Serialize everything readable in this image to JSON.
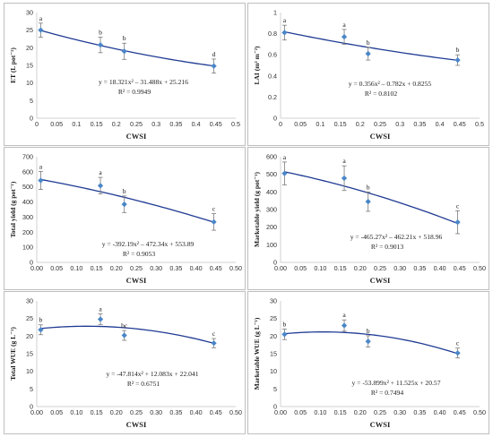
{
  "colors": {
    "curve": "#1f3a93",
    "point": "#4a86c8",
    "errorbar": "#7a7a7a",
    "border": "#bfbfbf"
  },
  "chart_data": [
    {
      "type": "scatter",
      "xlabel": "CWSI",
      "ylabel": "ET (L pot⁻¹)",
      "xlim": [
        0,
        0.5
      ],
      "ylim": [
        0,
        30
      ],
      "xticks": [
        "0",
        "0.05",
        "0.1",
        "0.15",
        "0.2",
        "0.25",
        "0.3",
        "0.35",
        "0.4",
        "0.45",
        "0.5"
      ],
      "yticks": [
        "0",
        "5",
        "10",
        "15",
        "20",
        "25",
        "30"
      ],
      "points": [
        {
          "x": 0.01,
          "y": 25.0,
          "err": 2.0,
          "label": "a"
        },
        {
          "x": 0.16,
          "y": 20.8,
          "err": 2.2,
          "label": "b"
        },
        {
          "x": 0.22,
          "y": 19.0,
          "err": 2.3,
          "label": "b"
        },
        {
          "x": 0.445,
          "y": 14.8,
          "err": 2.0,
          "label": "d"
        }
      ],
      "fit": [
        18.321,
        -31.488,
        25.216
      ],
      "equation": "y = 18.321x² – 31.488x + 25.216",
      "r2": "R² = 0.9949"
    },
    {
      "type": "scatter",
      "xlabel": "CWSI",
      "ylabel": "LAI (m² m⁻²)",
      "xlim": [
        0,
        0.5
      ],
      "ylim": [
        0,
        1
      ],
      "xticks": [
        "0",
        "0.05",
        "0.1",
        "0.15",
        "0.2",
        "0.25",
        "0.3",
        "0.35",
        "0.4",
        "0.45",
        "0.5"
      ],
      "yticks": [
        "0",
        "0.2",
        "0.4",
        "0.6",
        "0.8",
        "1"
      ],
      "points": [
        {
          "x": 0.01,
          "y": 0.81,
          "err": 0.07,
          "label": "a"
        },
        {
          "x": 0.16,
          "y": 0.77,
          "err": 0.07,
          "label": "a"
        },
        {
          "x": 0.22,
          "y": 0.61,
          "err": 0.06,
          "label": "b"
        },
        {
          "x": 0.445,
          "y": 0.55,
          "err": 0.05,
          "label": "b"
        }
      ],
      "fit": [
        0.356,
        -0.782,
        0.8255
      ],
      "equation": "y = 0.356x² – 0.782x + 0.8255",
      "r2": "R² = 0.8102"
    },
    {
      "type": "scatter",
      "xlabel": "CWSI",
      "ylabel": "Total yield (g pot⁻¹)",
      "xlim": [
        0,
        0.5
      ],
      "ylim": [
        0,
        700
      ],
      "xticks": [
        "0.00",
        "0.05",
        "0.10",
        "0.15",
        "0.20",
        "0.25",
        "0.30",
        "0.35",
        "0.40",
        "0.45",
        "0.50"
      ],
      "yticks": [
        "0",
        "100",
        "200",
        "300",
        "400",
        "500",
        "600",
        "700"
      ],
      "points": [
        {
          "x": 0.01,
          "y": 543,
          "err": 60,
          "label": "a"
        },
        {
          "x": 0.16,
          "y": 508,
          "err": 55,
          "label": "a"
        },
        {
          "x": 0.22,
          "y": 385,
          "err": 55,
          "label": "b"
        },
        {
          "x": 0.445,
          "y": 268,
          "err": 55,
          "label": "c"
        }
      ],
      "fit": [
        -392.19,
        -472.34,
        553.89
      ],
      "equation": "y = -392.19x² – 472.34x + 553.89",
      "r2": "R² = 0.9053"
    },
    {
      "type": "scatter",
      "xlabel": "CWSI",
      "ylabel": "Marketable yield (g pot⁻¹)",
      "xlim": [
        0,
        0.5
      ],
      "ylim": [
        0,
        600
      ],
      "xticks": [
        "0.00",
        "0.05",
        "0.10",
        "0.15",
        "0.20",
        "0.25",
        "0.30",
        "0.35",
        "0.40",
        "0.45",
        "0.50"
      ],
      "yticks": [
        "0",
        "100",
        "200",
        "300",
        "400",
        "500",
        "600"
      ],
      "points": [
        {
          "x": 0.01,
          "y": 505,
          "err": 65,
          "label": "a"
        },
        {
          "x": 0.16,
          "y": 478,
          "err": 70,
          "label": "a"
        },
        {
          "x": 0.22,
          "y": 345,
          "err": 55,
          "label": "b"
        },
        {
          "x": 0.445,
          "y": 228,
          "err": 65,
          "label": "c"
        }
      ],
      "fit": [
        -465.27,
        -462.21,
        518.96
      ],
      "equation": "y = -465.27x² – 462.21x + 518.96",
      "r2": "R² = 0.9013"
    },
    {
      "type": "scatter",
      "xlabel": "CWSI",
      "ylabel": "Total WUE (g L⁻¹)",
      "xlim": [
        0,
        0.5
      ],
      "ylim": [
        0,
        30
      ],
      "xticks": [
        "0.00",
        "0.05",
        "0.10",
        "0.15",
        "0.20",
        "0.25",
        "0.30",
        "0.35",
        "0.40",
        "0.45",
        "0.50"
      ],
      "yticks": [
        "0",
        "5",
        "10",
        "15",
        "20",
        "25",
        "30"
      ],
      "points": [
        {
          "x": 0.01,
          "y": 21.8,
          "err": 1.4,
          "label": "b"
        },
        {
          "x": 0.16,
          "y": 24.8,
          "err": 1.5,
          "label": "a"
        },
        {
          "x": 0.22,
          "y": 20.2,
          "err": 1.4,
          "label": "bc"
        },
        {
          "x": 0.445,
          "y": 18.0,
          "err": 1.3,
          "label": "c"
        }
      ],
      "fit": [
        -47.814,
        12.083,
        22.041
      ],
      "equation": "y = -47.814x² + 12.083x + 22.041",
      "r2": "R² = 0.6751"
    },
    {
      "type": "scatter",
      "xlabel": "CWSI",
      "ylabel": "Marketable WUE (g L⁻¹)",
      "xlim": [
        0,
        0.5
      ],
      "ylim": [
        0,
        30
      ],
      "xticks": [
        "0.00",
        "0.05",
        "0.10",
        "0.15",
        "0.20",
        "0.25",
        "0.30",
        "0.35",
        "0.40",
        "0.45",
        "0.50"
      ],
      "yticks": [
        "0",
        "5",
        "10",
        "15",
        "20",
        "25",
        "30"
      ],
      "points": [
        {
          "x": 0.01,
          "y": 20.5,
          "err": 1.5,
          "label": "b"
        },
        {
          "x": 0.16,
          "y": 23.0,
          "err": 1.6,
          "label": "a"
        },
        {
          "x": 0.22,
          "y": 18.5,
          "err": 1.6,
          "label": "b"
        },
        {
          "x": 0.445,
          "y": 15.2,
          "err": 1.4,
          "label": "c"
        }
      ],
      "fit": [
        -53.899,
        11.525,
        20.57
      ],
      "equation": "y = -53.899x² + 11.525x + 20.57",
      "r2": "R² = 0.7494"
    }
  ]
}
